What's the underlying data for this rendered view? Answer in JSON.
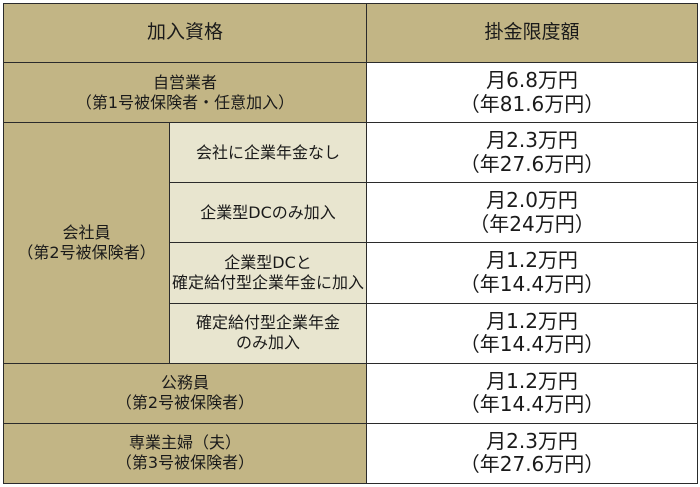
{
  "header": {
    "eligibility": "加入資格",
    "limit": "掛金限度額"
  },
  "rows": {
    "self_employed": {
      "label1": "自営業者",
      "label2": "（第1号被保険者・任意加入）",
      "monthly": "月6.8万円",
      "yearly": "（年81.6万円）"
    },
    "employee": {
      "label1": "会社員",
      "label2": "（第2号被保険者）",
      "sub": [
        {
          "line1": "会社に企業年金なし",
          "line2": "",
          "monthly": "月2.3万円",
          "yearly": "（年27.6万円）"
        },
        {
          "line1": "企業型DCのみ加入",
          "line2": "",
          "monthly": "月2.0万円",
          "yearly": "（年24万円）"
        },
        {
          "line1": "企業型DCと",
          "line2": "確定給付型企業年金に加入",
          "monthly": "月1.2万円",
          "yearly": "（年14.4万円）"
        },
        {
          "line1": "確定給付型企業年金",
          "line2": "のみ加入",
          "monthly": "月1.2万円",
          "yearly": "（年14.4万円）"
        }
      ]
    },
    "civil_servant": {
      "label1": "公務員",
      "label2": "（第2号被保険者）",
      "monthly": "月1.2万円",
      "yearly": "（年14.4万円）"
    },
    "homemaker": {
      "label1": "専業主婦（夫）",
      "label2": "（第3号被保険者）",
      "monthly": "月2.3万円",
      "yearly": "（年27.6万円）"
    }
  }
}
